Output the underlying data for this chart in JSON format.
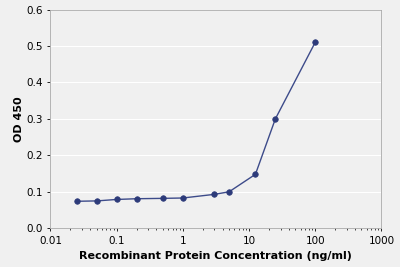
{
  "x": [
    0.025,
    0.05,
    0.1,
    0.2,
    0.5,
    1.0,
    3.0,
    5.0,
    12.5,
    25.0,
    100.0
  ],
  "y": [
    0.074,
    0.075,
    0.079,
    0.081,
    0.082,
    0.083,
    0.093,
    0.1,
    0.148,
    0.3,
    0.51
  ],
  "line_color": "#3d4b8a",
  "marker_color": "#2d3b7a",
  "marker_size": 4,
  "xlabel": "Recombinant Protein Concentration (ng/ml)",
  "ylabel": "OD 450",
  "xlim": [
    0.01,
    1000
  ],
  "ylim": [
    0,
    0.6
  ],
  "yticks": [
    0,
    0.1,
    0.2,
    0.3,
    0.4,
    0.5,
    0.6
  ],
  "xtick_majors": [
    0.01,
    0.1,
    1,
    10,
    100,
    1000
  ],
  "xtick_labels": [
    "0.01",
    "0.1",
    "1",
    "10",
    "100",
    "1000"
  ],
  "label_fontsize": 8,
  "tick_fontsize": 7.5,
  "background_color": "#f0f0f0",
  "fig_background": "#f0f0f0",
  "grid_color": "#ffffff",
  "spine_color": "#aaaaaa"
}
